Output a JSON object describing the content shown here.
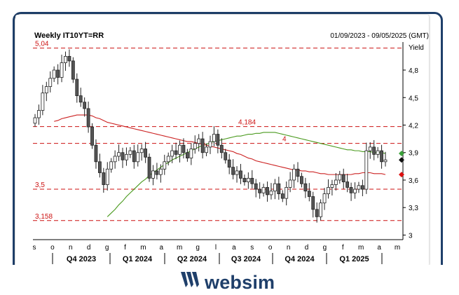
{
  "header": {
    "title": "Weekly IT10YT=RR",
    "date_range": "01/09/2023 - 09/05/2025 (GMT)",
    "y_axis_unit": "Yield"
  },
  "brand": {
    "name": "websim"
  },
  "colors": {
    "bull_candle": "#ffffff",
    "bear_candle": "#555555",
    "ma_short": "#cc2222",
    "ma_long": "#4a9a1e",
    "ref_line": "#cc1111",
    "axis": "#000000",
    "brand": "#1f3f6a",
    "marker_green": "#3aa13a",
    "marker_black": "#111111",
    "marker_red": "#dd1111"
  },
  "chart_data": {
    "type": "candlestick",
    "y_ticks": [
      "4,8",
      "4,5",
      "4,2",
      "3,9",
      "3,6",
      "3,3",
      "3"
    ],
    "y_tick_values": [
      4.8,
      4.5,
      4.2,
      3.9,
      3.6,
      3.3,
      3.0
    ],
    "ylim": [
      2.95,
      5.06
    ],
    "month_ticks": [
      "s",
      "o",
      "n",
      "d",
      "g",
      "f",
      "m",
      "a",
      "m",
      "g",
      "l",
      "a",
      "s",
      "o",
      "n",
      "d",
      "g",
      "f",
      "m",
      "a",
      "m"
    ],
    "quarters": [
      "Q4 2023",
      "Q1 2024",
      "Q2 2024",
      "Q3 2024",
      "Q4 2024",
      "Q1 2025"
    ],
    "reference_lines": [
      {
        "label": "5,04",
        "value": 5.04
      },
      {
        "label": "4,184",
        "value": 4.184
      },
      {
        "label": "4",
        "value": 4.0
      },
      {
        "label": "3,5",
        "value": 3.5
      },
      {
        "label": "3,158",
        "value": 3.158
      }
    ],
    "close": [
      4.28,
      4.36,
      4.55,
      4.62,
      4.71,
      4.8,
      4.72,
      4.88,
      4.95,
      4.9,
      4.7,
      4.52,
      4.45,
      4.38,
      4.18,
      3.98,
      3.8,
      3.68,
      3.55,
      3.72,
      3.8,
      3.86,
      3.9,
      3.82,
      3.88,
      3.92,
      3.8,
      3.9,
      3.94,
      3.85,
      3.62,
      3.7,
      3.66,
      3.72,
      3.8,
      3.86,
      3.92,
      3.88,
      3.98,
      3.9,
      3.84,
      3.94,
      4.0,
      4.05,
      3.9,
      3.96,
      4.02,
      4.1,
      3.98,
      3.9,
      3.82,
      3.74,
      3.66,
      3.7,
      3.62,
      3.58,
      3.62,
      3.56,
      3.5,
      3.46,
      3.52,
      3.44,
      3.48,
      3.56,
      3.45,
      3.4,
      3.52,
      3.6,
      3.72,
      3.64,
      3.56,
      3.48,
      3.42,
      3.28,
      3.2,
      3.35,
      3.45,
      3.52,
      3.55,
      3.6,
      3.66,
      3.58,
      3.52,
      3.46,
      3.5,
      3.54,
      3.5,
      3.92,
      3.96,
      3.88,
      3.92,
      3.8,
      3.82
    ],
    "ma_short": [
      4.24,
      4.25,
      4.27,
      4.28,
      4.29,
      4.3,
      4.31,
      4.31,
      4.31,
      4.31,
      4.3,
      4.28,
      4.27,
      4.25,
      4.23,
      4.22,
      4.21,
      4.2,
      4.19,
      4.18,
      4.17,
      4.16,
      4.15,
      4.14,
      4.13,
      4.12,
      4.11,
      4.1,
      4.09,
      4.08,
      4.07,
      4.06,
      4.05,
      4.04,
      4.03,
      4.02,
      4.02,
      4.01,
      4.0,
      3.99,
      3.98,
      3.97,
      3.96,
      3.95,
      3.94,
      3.93,
      3.92,
      3.91,
      3.89,
      3.88,
      3.86,
      3.84,
      3.83,
      3.81,
      3.8,
      3.79,
      3.78,
      3.77,
      3.76,
      3.75,
      3.74,
      3.73,
      3.72,
      3.71,
      3.71,
      3.7,
      3.7,
      3.69,
      3.69,
      3.68,
      3.67,
      3.67,
      3.66,
      3.66,
      3.66,
      3.66,
      3.66,
      3.66,
      3.66,
      3.67,
      3.67,
      3.68,
      3.68,
      3.68,
      3.67,
      3.67,
      3.67,
      3.66
    ],
    "ma_long": [
      3.2,
      3.24,
      3.28,
      3.33,
      3.37,
      3.42,
      3.46,
      3.5,
      3.54,
      3.58,
      3.61,
      3.65,
      3.68,
      3.71,
      3.74,
      3.77,
      3.79,
      3.82,
      3.84,
      3.86,
      3.88,
      3.9,
      3.92,
      3.94,
      3.96,
      3.98,
      3.99,
      4.01,
      4.02,
      4.03,
      4.04,
      4.05,
      4.06,
      4.07,
      4.08,
      4.08,
      4.09,
      4.1,
      4.1,
      4.11,
      4.11,
      4.12,
      4.12,
      4.12,
      4.12,
      4.11,
      4.1,
      4.09,
      4.08,
      4.07,
      4.06,
      4.05,
      4.04,
      4.03,
      4.02,
      4.01,
      4.0,
      3.99,
      3.98,
      3.97,
      3.96,
      3.95,
      3.94,
      3.93,
      3.93,
      3.92,
      3.92,
      3.91,
      3.91,
      3.91,
      3.9,
      3.9,
      3.9,
      3.89
    ]
  }
}
